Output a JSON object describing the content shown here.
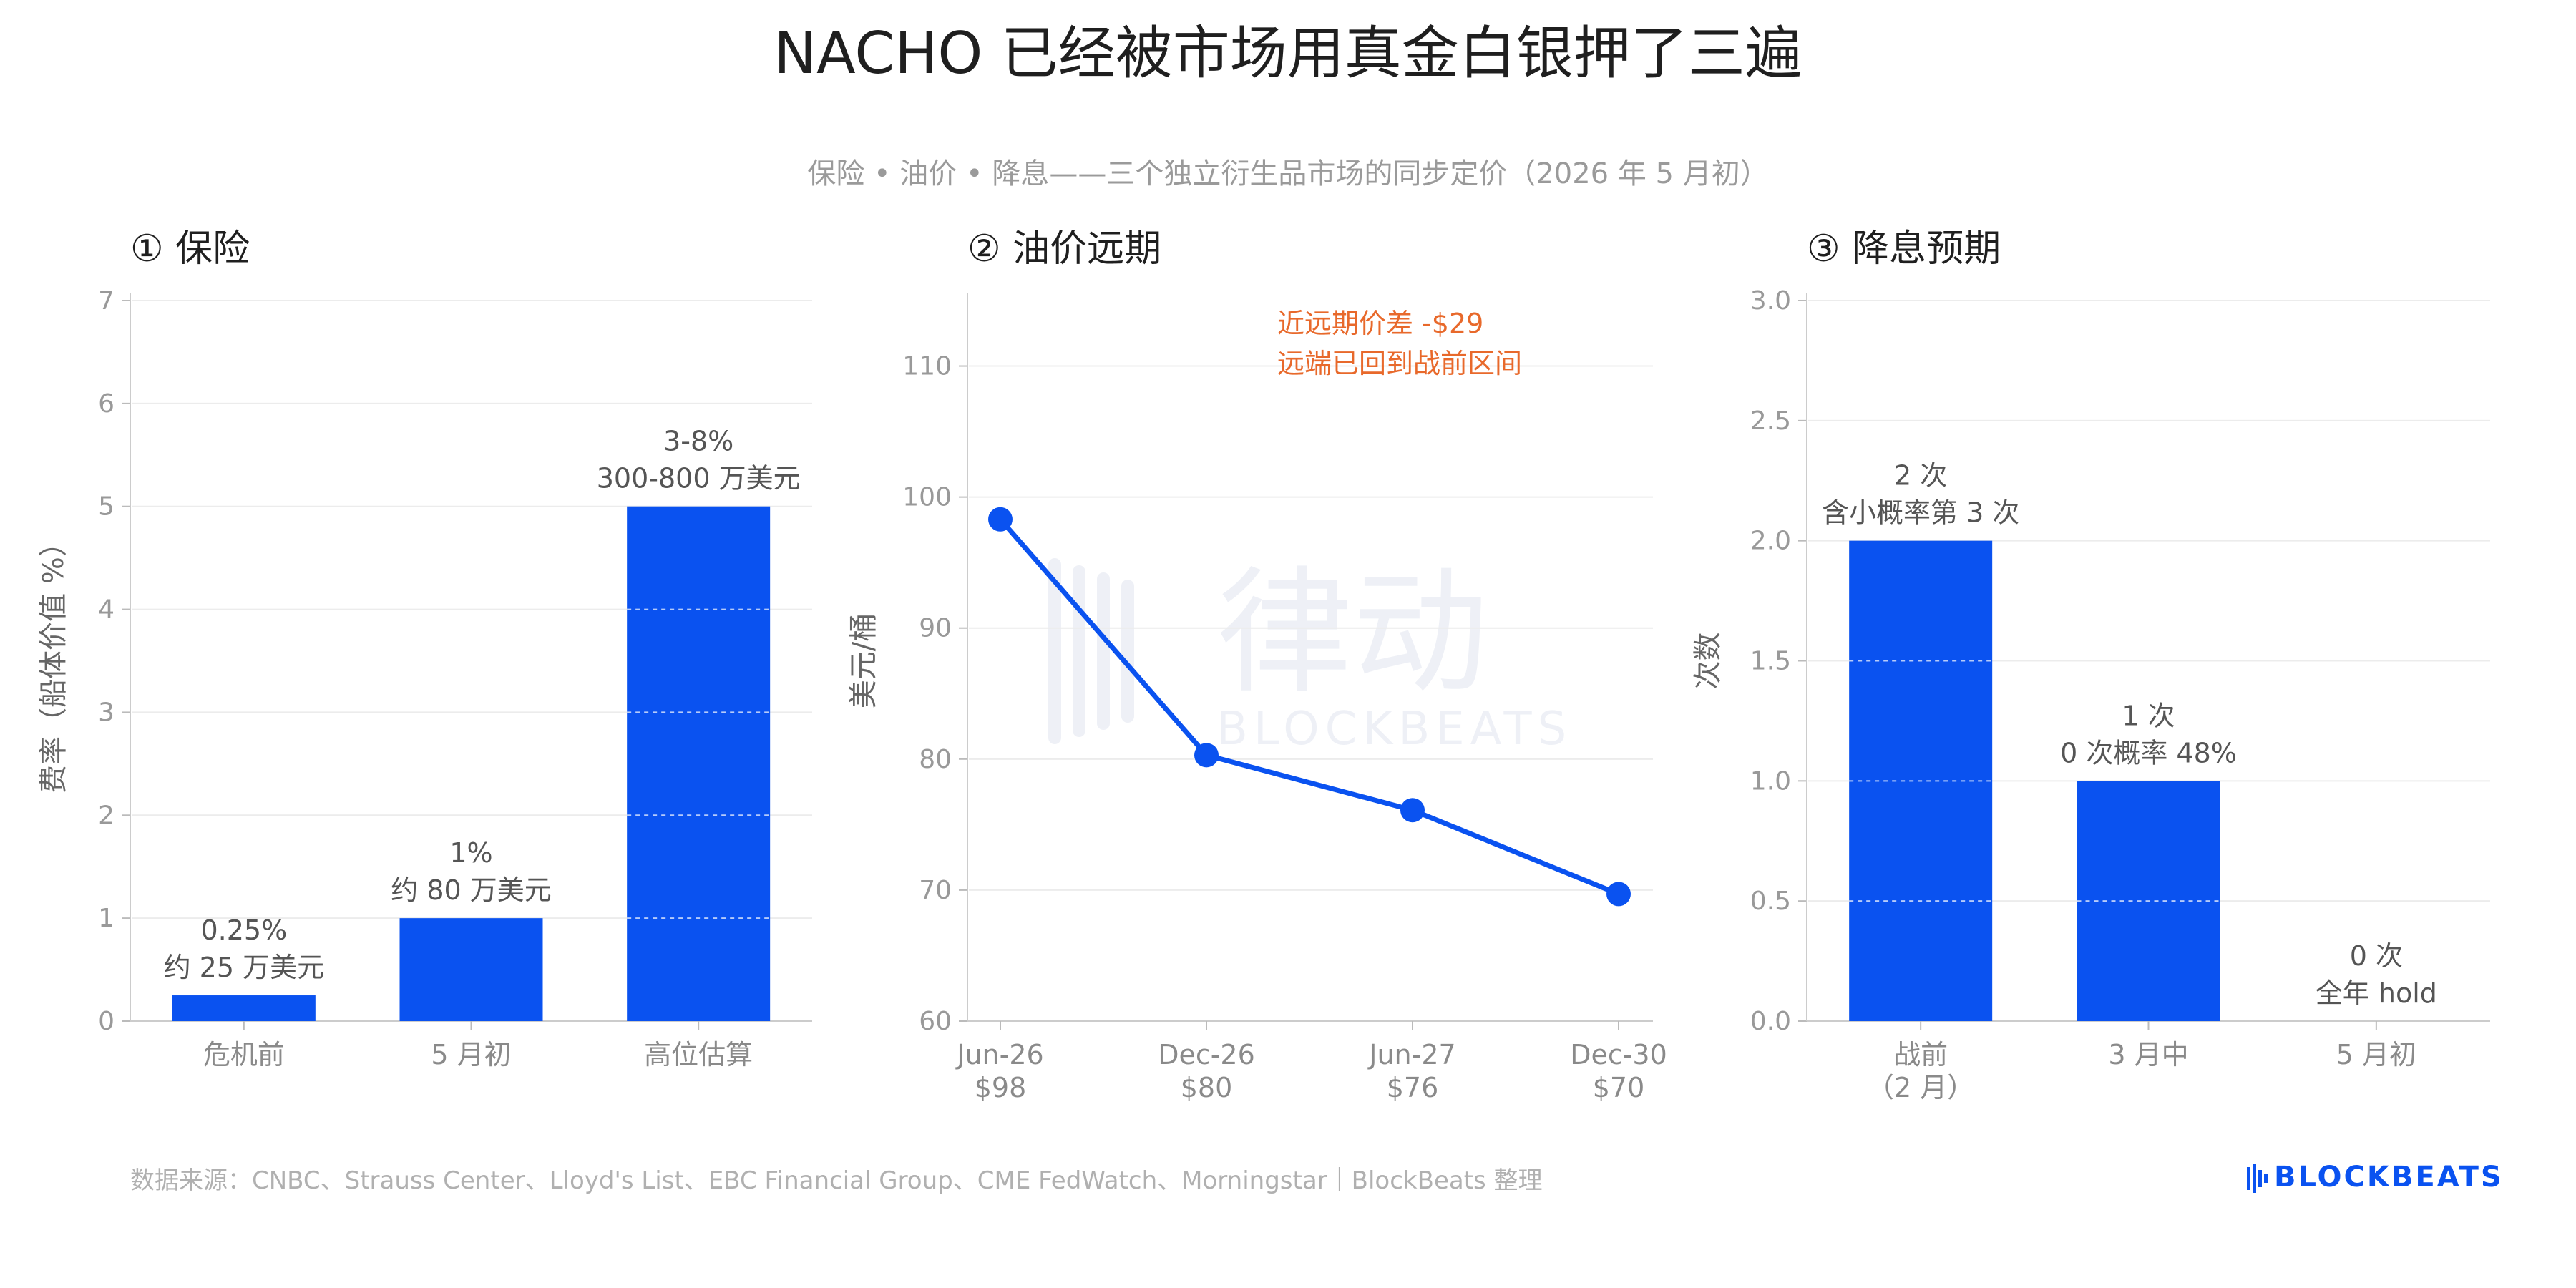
{
  "title": "NACHO 已经被市场用真金白银押了三遍",
  "subtitle": "保险 • 油价 • 降息——三个独立衍生品市场的同步定价（2026 年 5 月初）",
  "source": "数据来源：CNBC、Strauss Center、Lloyd's List、EBC Financial Group、CME FedWatch、Morningstar｜BlockBeats 整理",
  "brand": "BLOCKBEATS",
  "watermark": "律动 BLOCKBEATS",
  "colors": {
    "bar": "#0a52f0",
    "line": "#0a52f0",
    "annotation_accent": "#e8692b"
  },
  "chart_data": [
    {
      "type": "bar",
      "title": "① 保险",
      "ylabel": "费率（船体价值 %）",
      "categories": [
        "危机前",
        "5 月初",
        "高位估算"
      ],
      "values": [
        0.25,
        1,
        5
      ],
      "ylim": [
        0,
        7
      ],
      "yticks": [
        0,
        1,
        2,
        3,
        4,
        5,
        6,
        7
      ],
      "bar_labels": [
        [
          "0.25%",
          "约 25 万美元"
        ],
        [
          "1%",
          "约 80 万美元"
        ],
        [
          "3-8%",
          "300-800 万美元"
        ]
      ],
      "grid": true
    },
    {
      "type": "line",
      "title": "② 油价远期",
      "ylabel": "美元/桶",
      "x": [
        "Jun-26",
        "Dec-26",
        "Jun-27",
        "Dec-30"
      ],
      "x_sublabels": [
        "$98",
        "$80",
        "$76",
        "$70"
      ],
      "values": [
        98.3,
        80.3,
        76.1,
        69.7
      ],
      "ylim": [
        60,
        115
      ],
      "yticks": [
        60,
        70,
        80,
        90,
        100,
        110
      ],
      "annotation": [
        "近远期价差 -$29",
        "远端已回到战前区间"
      ],
      "grid": true
    },
    {
      "type": "bar",
      "title": "③ 降息预期",
      "ylabel": "次数",
      "categories": [
        [
          "战前",
          "（2 月）"
        ],
        [
          "3 月中"
        ],
        [
          "5 月初"
        ]
      ],
      "values": [
        2,
        1,
        0
      ],
      "ylim": [
        0,
        3
      ],
      "yticks": [
        "0.0",
        "0.5",
        "1.0",
        "1.5",
        "2.0",
        "2.5",
        "3.0"
      ],
      "bar_labels": [
        [
          "2 次",
          "含小概率第 3 次"
        ],
        [
          "1 次",
          "0 次概率 48%"
        ],
        [
          "0 次",
          "全年 hold"
        ]
      ],
      "grid": true
    }
  ]
}
